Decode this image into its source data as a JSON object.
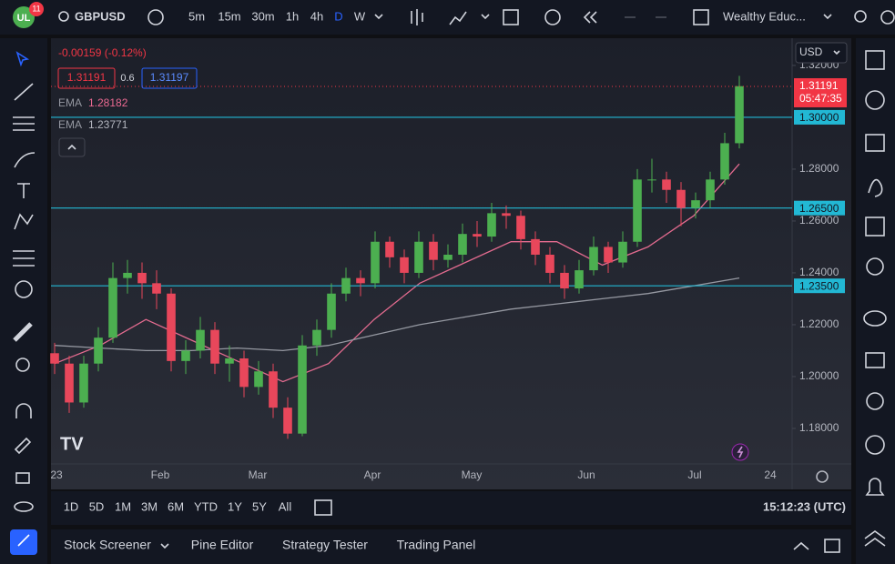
{
  "toolbar": {
    "badge": "11",
    "symbol": "GBPUSD",
    "intervals": [
      "5m",
      "15m",
      "30m",
      "1h",
      "4h",
      "D",
      "W"
    ],
    "layout_name": "Wealthy Educ..."
  },
  "legend": {
    "change": "-0.00159 (-0.12%)",
    "bid": "1.31191",
    "spread": "0.6",
    "ask": "1.31197",
    "indicators": [
      {
        "name": "EMA",
        "value": "1.28182"
      },
      {
        "name": "EMA",
        "value": "1.23771"
      }
    ]
  },
  "price_scale": {
    "currency": "USD"
  },
  "chart": {
    "type": "candlestick",
    "up_color": "#4caf50",
    "down_color": "#e8475b",
    "ylim": [
      1.1663,
      1.3305
    ],
    "yticks": [
      {
        "value": 1.32,
        "label": "1.32000"
      },
      {
        "value": 1.28,
        "label": "1.28000"
      },
      {
        "value": 1.26,
        "label": "1.26000"
      },
      {
        "value": 1.24,
        "label": "1.24000"
      },
      {
        "value": 1.22,
        "label": "1.22000"
      },
      {
        "value": 1.2,
        "label": "1.20000"
      },
      {
        "value": 1.18,
        "label": "1.18000"
      }
    ],
    "levels": [
      {
        "value": 1.3,
        "label": "1.30000"
      },
      {
        "value": 1.265,
        "label": "1.26500"
      },
      {
        "value": 1.235,
        "label": "1.23500"
      }
    ],
    "last_price": {
      "value": 1.31191,
      "label": "1.31191"
    },
    "countdown": "05:47:35",
    "candles": [
      [
        1.209,
        1.213,
        1.201,
        1.205
      ],
      [
        1.205,
        1.208,
        1.186,
        1.19
      ],
      [
        1.19,
        1.208,
        1.188,
        1.205
      ],
      [
        1.205,
        1.219,
        1.202,
        1.215
      ],
      [
        1.215,
        1.244,
        1.213,
        1.238
      ],
      [
        1.238,
        1.245,
        1.232,
        1.24
      ],
      [
        1.24,
        1.244,
        1.23,
        1.236
      ],
      [
        1.236,
        1.241,
        1.226,
        1.232
      ],
      [
        1.232,
        1.234,
        1.202,
        1.206
      ],
      [
        1.206,
        1.214,
        1.201,
        1.21
      ],
      [
        1.21,
        1.223,
        1.207,
        1.218
      ],
      [
        1.218,
        1.221,
        1.201,
        1.205
      ],
      [
        1.205,
        1.212,
        1.198,
        1.207
      ],
      [
        1.207,
        1.21,
        1.192,
        1.196
      ],
      [
        1.196,
        1.206,
        1.193,
        1.202
      ],
      [
        1.202,
        1.205,
        1.184,
        1.188
      ],
      [
        1.188,
        1.192,
        1.176,
        1.178
      ],
      [
        1.178,
        1.216,
        1.177,
        1.212
      ],
      [
        1.212,
        1.222,
        1.208,
        1.218
      ],
      [
        1.218,
        1.236,
        1.215,
        1.232
      ],
      [
        1.232,
        1.242,
        1.229,
        1.238
      ],
      [
        1.238,
        1.241,
        1.231,
        1.236
      ],
      [
        1.236,
        1.256,
        1.234,
        1.252
      ],
      [
        1.252,
        1.254,
        1.242,
        1.246
      ],
      [
        1.246,
        1.249,
        1.236,
        1.24
      ],
      [
        1.24,
        1.256,
        1.238,
        1.252
      ],
      [
        1.252,
        1.255,
        1.241,
        1.245
      ],
      [
        1.245,
        1.251,
        1.242,
        1.247
      ],
      [
        1.247,
        1.259,
        1.244,
        1.255
      ],
      [
        1.255,
        1.26,
        1.25,
        1.254
      ],
      [
        1.254,
        1.267,
        1.252,
        1.263
      ],
      [
        1.263,
        1.266,
        1.257,
        1.262
      ],
      [
        1.262,
        1.264,
        1.249,
        1.253
      ],
      [
        1.253,
        1.256,
        1.243,
        1.247
      ],
      [
        1.247,
        1.25,
        1.236,
        1.24
      ],
      [
        1.24,
        1.243,
        1.23,
        1.234
      ],
      [
        1.234,
        1.245,
        1.232,
        1.241
      ],
      [
        1.241,
        1.254,
        1.239,
        1.25
      ],
      [
        1.25,
        1.252,
        1.24,
        1.244
      ],
      [
        1.244,
        1.256,
        1.242,
        1.252
      ],
      [
        1.252,
        1.28,
        1.25,
        1.276
      ],
      [
        1.276,
        1.284,
        1.271,
        1.276
      ],
      [
        1.276,
        1.279,
        1.267,
        1.272
      ],
      [
        1.272,
        1.275,
        1.258,
        1.265
      ],
      [
        1.265,
        1.271,
        1.261,
        1.268
      ],
      [
        1.268,
        1.279,
        1.265,
        1.276
      ],
      [
        1.276,
        1.294,
        1.274,
        1.29
      ],
      [
        1.29,
        1.316,
        1.288,
        1.312
      ]
    ],
    "ema_lines": [
      {
        "color": "#e36b8f",
        "values": [
          1.205,
          1.212,
          1.222,
          1.214,
          1.206,
          1.198,
          1.205,
          1.222,
          1.236,
          1.244,
          1.252,
          1.252,
          1.243,
          1.25,
          1.262,
          1.282
        ]
      },
      {
        "color": "#9598a1",
        "values": [
          1.212,
          1.211,
          1.21,
          1.21,
          1.211,
          1.21,
          1.212,
          1.216,
          1.22,
          1.223,
          1.226,
          1.228,
          1.23,
          1.232,
          1.235,
          1.238
        ]
      }
    ]
  },
  "time_axis": [
    "23",
    "Feb",
    "Mar",
    "Apr",
    "May",
    "Jun",
    "Jul",
    "24"
  ],
  "range_bar": {
    "ranges": [
      "1D",
      "5D",
      "1M",
      "3M",
      "6M",
      "YTD",
      "1Y",
      "5Y",
      "All"
    ],
    "clock": "15:12:23 (UTC)"
  },
  "bottom_panel": {
    "tabs": [
      "Stock Screener",
      "Pine Editor",
      "Strategy Tester",
      "Trading Panel"
    ]
  }
}
